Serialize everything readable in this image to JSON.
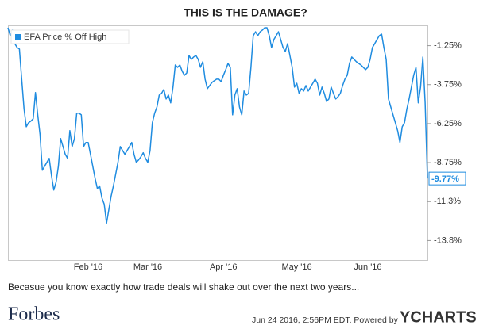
{
  "chart_data": {
    "type": "line",
    "title": "THIS IS THE DAMAGE?",
    "caption": "Becasue you know exactly how trade deals will shake out over the next two years...",
    "brand": "Forbes",
    "footer_date": "Jun 24 2016, 2:56PM EDT.  Powered by",
    "footer_brand": "YCHARTS",
    "legend": "top-left",
    "grid": false,
    "ylim": [
      -15,
      0
    ],
    "yticks": [
      {
        "value": -1.25,
        "label": "-1.25%"
      },
      {
        "value": -3.75,
        "label": "-3.75%"
      },
      {
        "value": -6.25,
        "label": "-6.25%"
      },
      {
        "value": -8.75,
        "label": "-8.75%"
      },
      {
        "value": -11.25,
        "label": "-11.3%"
      },
      {
        "value": -13.75,
        "label": "-13.8%"
      }
    ],
    "categories": [
      null,
      null,
      null,
      null,
      null,
      null,
      null,
      null,
      null,
      null,
      null,
      null,
      null,
      null,
      null,
      null,
      null,
      null,
      null,
      null,
      null,
      null,
      null,
      null,
      null,
      null,
      null,
      null,
      null,
      null,
      null,
      null,
      null,
      null,
      null,
      "Feb '16",
      null,
      null,
      null,
      null,
      null,
      null,
      null,
      null,
      null,
      null,
      null,
      null,
      null,
      null,
      null,
      null,
      null,
      null,
      null,
      null,
      null,
      null,
      null,
      null,
      null,
      "Mar '16",
      null,
      null,
      null,
      null,
      null,
      null,
      null,
      null,
      null,
      null,
      null,
      null,
      null,
      null,
      null,
      null,
      null,
      null,
      null,
      null,
      null,
      null,
      null,
      null,
      null,
      null,
      null,
      null,
      null,
      null,
      null,
      null,
      "Apr '16",
      null,
      null,
      null,
      null,
      null,
      null,
      null,
      null,
      null,
      null,
      null,
      null,
      null,
      null,
      null,
      null,
      null,
      null,
      null,
      null,
      null,
      null,
      null,
      null,
      null,
      null,
      null,
      null,
      null,
      null,
      null,
      "May '16",
      null,
      null,
      null,
      null,
      null,
      null,
      null,
      null,
      null,
      null,
      null,
      null,
      null,
      null,
      null,
      null,
      null,
      null,
      null,
      null,
      null,
      null,
      null,
      null,
      null,
      null,
      null,
      null,
      null,
      null,
      "Jun '16",
      null,
      null,
      null,
      null,
      null,
      null,
      null,
      null,
      null,
      null,
      null,
      null,
      null,
      null,
      null,
      null,
      null,
      null,
      null,
      null,
      null,
      null,
      null,
      null,
      null,
      null
    ],
    "series": [
      {
        "name": "EFA Price % Off High",
        "color": "#1f8ce0",
        "values": [
          -0.1,
          -0.61,
          -0.25,
          -1.12,
          -1.37,
          -1.47,
          -3.4,
          -5.28,
          -6.45,
          -6.19,
          -6.09,
          -5.94,
          -4.26,
          -5.69,
          -6.95,
          -9.24,
          -8.98,
          -8.73,
          -8.48,
          -9.59,
          -10.51,
          -10.0,
          -8.98,
          -7.21,
          -7.72,
          -8.22,
          -8.48,
          -6.7,
          -7.72,
          -7.21,
          -5.58,
          -5.58,
          -5.69,
          -7.72,
          -7.46,
          -7.46,
          -8.22,
          -8.98,
          -9.75,
          -10.41,
          -10.25,
          -11.02,
          -11.42,
          -12.64,
          -11.78,
          -10.91,
          -10.25,
          -9.49,
          -8.73,
          -7.72,
          -7.97,
          -8.22,
          -7.97,
          -7.72,
          -7.46,
          -8.22,
          -8.73,
          -8.58,
          -8.38,
          -8.12,
          -8.48,
          -8.73,
          -7.97,
          -6.19,
          -5.58,
          -5.18,
          -4.42,
          -4.31,
          -4.06,
          -4.67,
          -4.42,
          -4.92,
          -3.91,
          -2.49,
          -2.64,
          -2.49,
          -2.89,
          -3.15,
          -3.0,
          -1.88,
          -2.13,
          -1.98,
          -1.88,
          -2.13,
          -2.64,
          -2.28,
          -3.4,
          -4.01,
          -3.81,
          -3.61,
          -3.5,
          -3.4,
          -3.4,
          -3.56,
          -3.15,
          -2.79,
          -2.39,
          -2.64,
          -5.69,
          -4.42,
          -4.01,
          -5.18,
          -5.69,
          -4.16,
          -4.42,
          -4.31,
          -2.64,
          -0.61,
          -0.36,
          -0.61,
          -0.36,
          -0.25,
          -0.1,
          -0.1,
          -0.61,
          -1.37,
          -0.86,
          -0.61,
          -0.36,
          -0.86,
          -1.37,
          -1.62,
          -1.12,
          -1.88,
          -2.64,
          -3.91,
          -3.66,
          -4.31,
          -4.01,
          -4.16,
          -3.81,
          -4.16,
          -3.91,
          -3.66,
          -3.4,
          -3.66,
          -4.42,
          -3.91,
          -4.31,
          -4.83,
          -4.67,
          -3.91,
          -4.31,
          -4.67,
          -4.52,
          -4.31,
          -3.81,
          -3.4,
          -3.15,
          -2.39,
          -1.98,
          -2.13,
          -2.28,
          -2.39,
          -2.49,
          -2.64,
          -2.79,
          -2.64,
          -2.13,
          -1.37,
          -1.12,
          -0.86,
          -0.61,
          -0.51,
          -1.37,
          -2.13,
          -4.67,
          -5.18,
          -5.69,
          -6.19,
          -6.7,
          -7.46,
          -6.45,
          -6.19,
          -5.33,
          -4.67,
          -3.91,
          -3.15,
          -2.64,
          -4.92,
          -3.91,
          -1.98,
          -4.92,
          -9.77
        ],
        "last_value_label": "-9.77%"
      }
    ]
  }
}
